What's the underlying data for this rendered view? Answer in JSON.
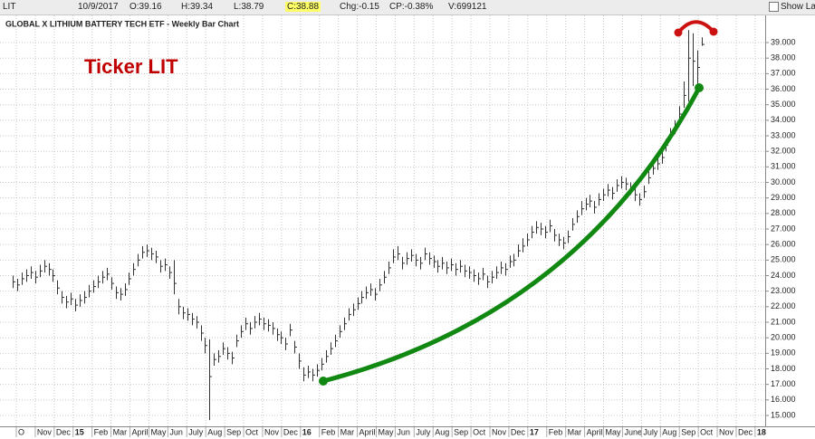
{
  "toolbar": {
    "symbol": "LIT",
    "date": "10/9/2017",
    "open": "O:39.16",
    "high": "H:39.34",
    "low": "L:38.79",
    "close": "C:38.88",
    "change": "Chg:-0.15",
    "change_percent": "CP:-0.38%",
    "volume": "V:699121",
    "show_last": "Show Last"
  },
  "chart_data": {
    "type": "ohlc",
    "title": "GLOBAL X LITHIUM BATTERY TECH ETF - Weekly Bar Chart",
    "annotation": "Ticker LIT",
    "color": "#333333",
    "x_labels": [
      "O",
      "Nov",
      "Dec",
      "15",
      "Feb",
      "Mar",
      "April",
      "May",
      "Jun",
      "July",
      "Aug",
      "Sep",
      "Oct",
      "Nov",
      "Dec",
      "16",
      "Feb",
      "Mar",
      "April",
      "May",
      "Jun",
      "July",
      "Aug",
      "Sep",
      "Oct",
      "Nov",
      "Dec",
      "17",
      "Feb",
      "Mar",
      "April",
      "May",
      "June",
      "July",
      "Aug",
      "Sep",
      "Oct",
      "Nov",
      "Dec",
      "18"
    ],
    "ylim": [
      14.3,
      40.75
    ],
    "yticks": [
      {
        "value": 15,
        "label": "15.000"
      },
      {
        "value": 16,
        "label": "16.000"
      },
      {
        "value": 17,
        "label": "17.000"
      },
      {
        "value": 18,
        "label": "18.000"
      },
      {
        "value": 19,
        "label": "19.000"
      },
      {
        "value": 20,
        "label": "20.000"
      },
      {
        "value": 21,
        "label": "21.000"
      },
      {
        "value": 22,
        "label": "22.000"
      },
      {
        "value": 23,
        "label": "23.000"
      },
      {
        "value": 24,
        "label": "24.000"
      },
      {
        "value": 25,
        "label": "25.000"
      },
      {
        "value": 26,
        "label": "26.000"
      },
      {
        "value": 27,
        "label": "27.000"
      },
      {
        "value": 28,
        "label": "28.000"
      },
      {
        "value": 29,
        "label": "29.000"
      },
      {
        "value": 30,
        "label": "30.000"
      },
      {
        "value": 31,
        "label": "31.000"
      },
      {
        "value": 32,
        "label": "32.000"
      },
      {
        "value": 33,
        "label": "33.000"
      },
      {
        "value": 34,
        "label": "34.000"
      },
      {
        "value": 35,
        "label": "35.000"
      },
      {
        "value": 36,
        "label": "36.000"
      },
      {
        "value": 37,
        "label": "37.000"
      },
      {
        "value": 38,
        "label": "38.000"
      },
      {
        "value": 39,
        "label": "39.000"
      }
    ],
    "grid": true,
    "high": [
      24.0,
      23.8,
      24.2,
      24.4,
      24.6,
      24.3,
      24.7,
      25.0,
      24.8,
      24.4,
      23.7,
      23.0,
      22.7,
      22.9,
      22.5,
      22.8,
      23.0,
      23.4,
      23.7,
      24.0,
      24.3,
      24.5,
      23.9,
      23.3,
      23.2,
      23.5,
      24.2,
      24.8,
      25.4,
      25.9,
      26.0,
      25.8,
      25.6,
      25.0,
      25.1,
      24.6,
      25.0,
      22.5,
      22.0,
      21.9,
      21.6,
      21.4,
      20.8,
      20.0,
      19.9,
      19.0,
      19.2,
      19.7,
      19.4,
      19.1,
      20.2,
      20.8,
      21.3,
      21.0,
      21.4,
      21.6,
      21.3,
      21.2,
      21.0,
      20.6,
      20.4,
      20.0,
      20.9,
      19.8,
      19.0,
      18.1,
      18.2,
      18.0,
      18.3,
      18.7,
      19.2,
      19.7,
      20.2,
      20.8,
      21.3,
      21.9,
      22.2,
      22.6,
      23.0,
      23.3,
      23.5,
      23.2,
      23.8,
      24.3,
      24.9,
      25.7,
      25.9,
      25.2,
      25.5,
      25.7,
      25.4,
      25.2,
      25.8,
      25.5,
      25.3,
      25.0,
      25.2,
      24.9,
      25.1,
      24.8,
      25.0,
      24.7,
      24.6,
      24.4,
      24.2,
      24.5,
      24.0,
      24.3,
      24.6,
      24.9,
      24.8,
      25.3,
      25.4,
      26.0,
      26.4,
      26.7,
      27.2,
      27.5,
      27.4,
      27.2,
      27.6,
      27.0,
      26.7,
      26.5,
      26.9,
      27.7,
      28.2,
      28.8,
      29.0,
      29.2,
      28.8,
      29.3,
      29.6,
      29.9,
      29.7,
      30.2,
      30.4,
      30.3,
      30.0,
      29.6,
      29.3,
      29.8,
      30.7,
      31.3,
      31.6,
      32.0,
      32.8,
      33.5,
      34.0,
      34.9,
      36.5,
      39.8,
      39.6,
      38.5,
      39.34
    ],
    "low": [
      23.2,
      23.0,
      23.4,
      23.6,
      23.8,
      23.5,
      23.9,
      24.2,
      24.0,
      23.6,
      22.8,
      22.2,
      21.9,
      22.1,
      21.7,
      22.0,
      22.2,
      22.6,
      22.9,
      23.2,
      23.5,
      23.7,
      23.1,
      22.5,
      22.4,
      22.7,
      23.4,
      24.0,
      24.6,
      25.1,
      25.2,
      25.0,
      24.8,
      24.2,
      24.3,
      23.8,
      22.8,
      21.5,
      21.2,
      21.1,
      20.8,
      20.6,
      19.8,
      19.0,
      14.7,
      18.2,
      18.4,
      18.9,
      18.6,
      18.3,
      19.4,
      20.0,
      20.5,
      20.2,
      20.6,
      20.8,
      20.5,
      20.4,
      20.2,
      19.8,
      19.6,
      19.2,
      20.1,
      19.0,
      18.0,
      17.2,
      17.4,
      17.2,
      17.5,
      17.9,
      18.4,
      18.9,
      19.4,
      20.0,
      20.5,
      21.1,
      21.4,
      21.8,
      22.2,
      22.5,
      22.7,
      22.4,
      23.0,
      23.5,
      24.1,
      24.8,
      25.0,
      24.4,
      24.7,
      24.9,
      24.6,
      24.4,
      25.0,
      24.7,
      24.5,
      24.2,
      24.4,
      24.1,
      24.3,
      24.0,
      24.2,
      23.9,
      23.8,
      23.6,
      23.4,
      23.7,
      23.2,
      23.5,
      23.8,
      24.1,
      24.0,
      24.5,
      24.6,
      25.2,
      25.5,
      25.9,
      26.4,
      26.7,
      26.6,
      26.4,
      26.8,
      26.2,
      25.9,
      25.7,
      26.1,
      26.9,
      27.4,
      27.9,
      28.2,
      28.4,
      28.0,
      28.5,
      28.8,
      29.1,
      28.9,
      29.4,
      29.6,
      29.5,
      29.2,
      28.8,
      28.5,
      29.0,
      29.9,
      30.5,
      30.8,
      31.2,
      32.0,
      32.7,
      33.1,
      34.0,
      34.8,
      35.2,
      36.2,
      36.1,
      38.79
    ],
    "close": [
      23.6,
      23.4,
      23.8,
      24.0,
      24.2,
      23.9,
      24.3,
      24.6,
      24.4,
      24.0,
      23.2,
      22.6,
      22.3,
      22.5,
      22.1,
      22.4,
      22.6,
      23.0,
      23.3,
      23.6,
      23.9,
      24.1,
      23.5,
      22.9,
      22.8,
      23.1,
      23.8,
      24.4,
      25.0,
      25.5,
      25.6,
      25.4,
      25.2,
      24.6,
      24.7,
      24.2,
      23.5,
      22.0,
      21.6,
      21.5,
      21.2,
      21.0,
      20.3,
      19.5,
      17.5,
      18.6,
      18.8,
      19.3,
      19.0,
      18.7,
      19.8,
      20.4,
      20.9,
      20.6,
      21.0,
      21.2,
      20.9,
      20.8,
      20.6,
      20.2,
      20.0,
      19.6,
      20.5,
      19.4,
      18.5,
      17.6,
      17.8,
      17.6,
      17.9,
      18.3,
      18.8,
      19.3,
      19.8,
      20.4,
      20.9,
      21.5,
      21.8,
      22.2,
      22.6,
      22.9,
      23.1,
      22.8,
      23.4,
      23.9,
      24.5,
      25.2,
      25.4,
      24.8,
      25.1,
      25.3,
      25.0,
      24.8,
      25.4,
      25.1,
      24.9,
      24.6,
      24.8,
      24.5,
      24.7,
      24.4,
      24.6,
      24.3,
      24.2,
      24.0,
      23.8,
      24.1,
      23.6,
      23.9,
      24.2,
      24.5,
      24.4,
      24.9,
      25.0,
      25.6,
      25.9,
      26.3,
      26.8,
      27.1,
      27.0,
      26.8,
      27.2,
      26.6,
      26.3,
      26.1,
      26.5,
      27.3,
      27.8,
      28.3,
      28.6,
      28.8,
      28.4,
      28.9,
      29.2,
      29.5,
      29.3,
      29.8,
      30.0,
      29.9,
      29.6,
      29.2,
      28.9,
      29.4,
      30.3,
      30.9,
      31.2,
      31.6,
      32.4,
      33.1,
      33.5,
      34.4,
      35.6,
      38.0,
      37.8,
      37.4,
      38.88
    ]
  }
}
